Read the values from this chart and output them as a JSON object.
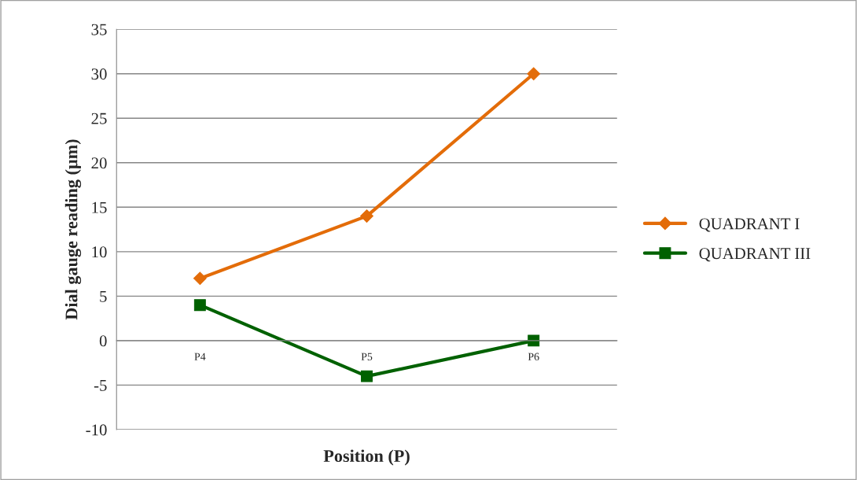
{
  "chart_data": {
    "type": "line",
    "xlabel": "Position (P)",
    "ylabel": "Dial gauge reading (µm)",
    "categories": [
      "P4",
      "P5",
      "P6"
    ],
    "series": [
      {
        "name": "QUADRANT I",
        "color": "#e36c09",
        "marker": "diamond",
        "values": [
          7,
          14,
          30
        ]
      },
      {
        "name": "QUADRANT III",
        "color": "#006100",
        "marker": "square",
        "values": [
          4,
          -4,
          0
        ]
      }
    ],
    "ylim": [
      -10,
      35
    ],
    "yticks": [
      -10,
      -5,
      0,
      5,
      10,
      15,
      20,
      25,
      30,
      35
    ],
    "grid": "y",
    "legend": "right",
    "line_style": "solid"
  }
}
